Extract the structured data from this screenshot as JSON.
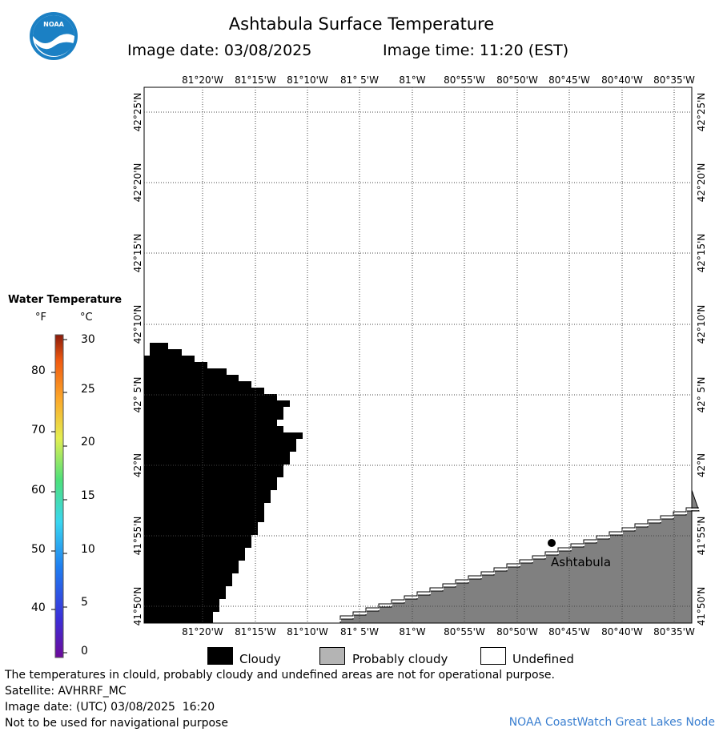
{
  "header": {
    "title": "Ashtabula Surface Temperature",
    "image_date_label": "Image date: 03/08/2025",
    "image_time_label": "Image time: 11:20 (EST)"
  },
  "logo": {
    "text": "NOAA"
  },
  "map": {
    "lon_labels": [
      "81°20'W",
      "81°15'W",
      "81°10'W",
      "81° 5'W",
      "81°W",
      "80°55'W",
      "80°50'W",
      "80°45'W",
      "80°40'W",
      "80°35'W"
    ],
    "lat_labels": [
      "42°25'N",
      "42°20'N",
      "42°15'N",
      "42°10'N",
      "42° 5'N",
      "42°N",
      "41°55'N",
      "41°50'N"
    ],
    "city": "Ashtabula",
    "colors": {
      "cloud": "#000000",
      "land": "#808080",
      "grid": "#444444"
    }
  },
  "legend": {
    "title": "Water Temperature",
    "unit_f": "°F",
    "unit_c": "°C",
    "f_ticks": [
      "80",
      "70",
      "60",
      "50",
      "40"
    ],
    "c_ticks": [
      "30",
      "25",
      "20",
      "15",
      "10",
      "5",
      "0"
    ]
  },
  "key": {
    "cloudy": "Cloudy",
    "probably_cloudy": "Probably cloudy",
    "undefined": "Undefined",
    "colors": {
      "cloudy": "#000000",
      "probably_cloudy": "#b4b4b4",
      "undefined": "#ffffff"
    }
  },
  "footer": {
    "disclaimer": "The temperatures in clould, probably cloudy and undefined areas are not for operational purpose.",
    "satellite": "Satellite: AVHRRF_MC",
    "utc_date": "Image date: (UTC) 03/08/2025  16:20",
    "nav_warning": "Not to be used for navigational purpose",
    "credit": "NOAA CoastWatch Great Lakes Node"
  }
}
